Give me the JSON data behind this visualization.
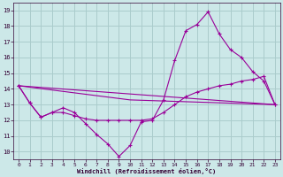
{
  "background_color": "#cce8e8",
  "grid_color": "#aacccc",
  "line_color": "#990099",
  "xlabel": "Windchill (Refroidissement éolien,°C)",
  "xlim": [
    -0.5,
    23.5
  ],
  "ylim": [
    9.5,
    19.5
  ],
  "yticks": [
    10,
    11,
    12,
    13,
    14,
    15,
    16,
    17,
    18,
    19
  ],
  "xticks": [
    0,
    1,
    2,
    3,
    4,
    5,
    6,
    7,
    8,
    9,
    10,
    11,
    12,
    13,
    14,
    15,
    16,
    17,
    18,
    19,
    20,
    21,
    22,
    23
  ],
  "line1_x": [
    0,
    1,
    2,
    3,
    4,
    5,
    6,
    7,
    8,
    9,
    10,
    11,
    12,
    13,
    14,
    15,
    16,
    17,
    18,
    19,
    20,
    21,
    22,
    23
  ],
  "line1_y": [
    14.2,
    13.1,
    12.2,
    12.5,
    12.8,
    12.5,
    11.8,
    11.1,
    10.5,
    9.7,
    10.4,
    11.9,
    12.0,
    13.3,
    15.8,
    17.7,
    18.1,
    18.9,
    17.5,
    16.5,
    16.0,
    15.1,
    14.5,
    13.0
  ],
  "line2_x": [
    0,
    1,
    2,
    3,
    4,
    5,
    6,
    7,
    8,
    9,
    10,
    11,
    12,
    13,
    14,
    15,
    16,
    17,
    18,
    19,
    20,
    21,
    22,
    23
  ],
  "line2_y": [
    14.2,
    13.1,
    12.2,
    12.5,
    12.5,
    12.3,
    12.1,
    12.0,
    12.0,
    12.0,
    12.0,
    12.0,
    12.1,
    12.5,
    13.0,
    13.5,
    13.8,
    14.0,
    14.2,
    14.3,
    14.5,
    14.6,
    14.8,
    13.0
  ],
  "line3_x": [
    0,
    23
  ],
  "line3_y": [
    14.2,
    13.0
  ],
  "line4_x": [
    0,
    10,
    23
  ],
  "line4_y": [
    14.2,
    13.3,
    13.0
  ]
}
